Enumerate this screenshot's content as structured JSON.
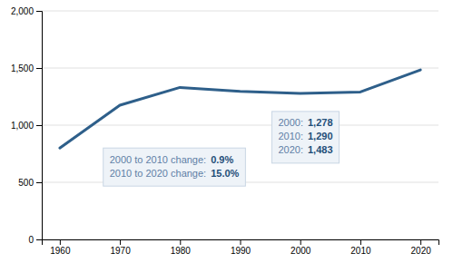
{
  "chart_data": {
    "type": "line",
    "x": [
      1960,
      1970,
      1980,
      1990,
      2000,
      2010,
      2020
    ],
    "values": [
      800,
      1175,
      1330,
      1295,
      1278,
      1290,
      1483
    ],
    "color": "#2e5f8a",
    "xlim": [
      1957,
      2023
    ],
    "ylim": [
      0,
      2000
    ],
    "xticks": [
      1960,
      1970,
      1980,
      1990,
      2000,
      2010,
      2020
    ],
    "yticks": [
      0,
      500,
      {
        "value": 1000,
        "label": "1,000"
      },
      {
        "value": 1500,
        "label": "1,500"
      },
      {
        "value": 2000,
        "label": "2,000"
      }
    ],
    "grid": true,
    "annotations": [
      {
        "lines": [
          {
            "label": "2000:",
            "text": "1,278"
          },
          {
            "label": "2010:",
            "text": "1,290"
          },
          {
            "label": "2020:",
            "text": "1,483"
          }
        ]
      },
      {
        "lines": [
          {
            "label": "2000 to 2010 change:",
            "text": "0.9%"
          },
          {
            "label": "2010 to 2020 change:",
            "text": "15.0%"
          }
        ]
      }
    ]
  }
}
